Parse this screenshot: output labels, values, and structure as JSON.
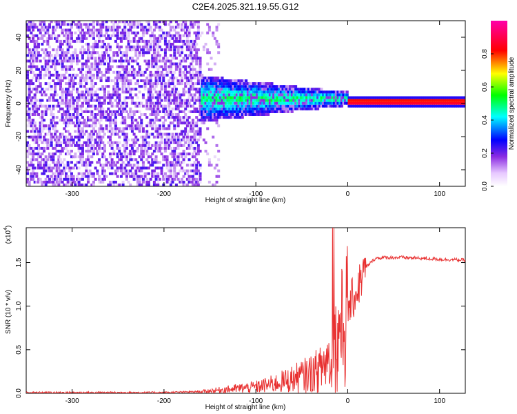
{
  "title": "C2E4.2025.321.19.55.G12",
  "chart_data": [
    {
      "type": "heatmap",
      "name": "spectrogram",
      "xlabel": "Height of straight line (km)",
      "ylabel": "Frequency (Hz)",
      "xlim": [
        -350,
        128
      ],
      "ylim": [
        -50,
        50
      ],
      "x_ticks": [
        -300,
        -200,
        -100,
        0,
        100
      ],
      "y_ticks": [
        -40,
        -20,
        0,
        20,
        40
      ],
      "x_tick_labels": [
        "-300",
        "-200",
        "-100",
        "0",
        "100"
      ],
      "y_tick_labels": [
        "-40",
        "-20",
        "0",
        "20",
        "40"
      ],
      "colorbar": {
        "label": "Normalized spectral amplitude",
        "range": [
          0,
          1
        ],
        "ticks": [
          0.0,
          0.2,
          0.4,
          0.6,
          0.8
        ],
        "tick_labels": [
          "0.0",
          "0.2",
          "0.4",
          "0.6",
          "0.8"
        ],
        "colormap": [
          "#ffffff",
          "#8a2be2",
          "#0000ff",
          "#00ffff",
          "#00ff00",
          "#ffff00",
          "#ff0000",
          "#ff00aa"
        ]
      },
      "regions": [
        {
          "x": [
            -350,
            -160
          ],
          "freq": [
            -50,
            50
          ],
          "amplitude": "low-noise"
        },
        {
          "x": [
            -175,
            0
          ],
          "freq": [
            -12,
            14
          ],
          "amplitude": "medium"
        },
        {
          "x": [
            0,
            128
          ],
          "freq": [
            -1,
            1
          ],
          "amplitude": "peak"
        }
      ]
    },
    {
      "type": "line",
      "name": "snr",
      "xlabel": "Height of straight line (km)",
      "ylabel": "SNR (10 * v/v)",
      "y_scale_label": "(x10",
      "y_scale_exp": "4",
      "xlim": [
        -350,
        128
      ],
      "ylim": [
        0,
        1.9
      ],
      "x_ticks": [
        -300,
        -200,
        -100,
        0,
        100
      ],
      "y_ticks": [
        0.0,
        0.5,
        1.0,
        1.5
      ],
      "x_tick_labels": [
        "-300",
        "-200",
        "-100",
        "0",
        "100"
      ],
      "y_tick_labels": [
        "0.0",
        "0.5",
        "1.0",
        "1.5"
      ],
      "line_color": "#e83030",
      "series": [
        {
          "name": "SNR",
          "x": [
            -350,
            -300,
            -250,
            -200,
            -160,
            -140,
            -120,
            -100,
            -80,
            -60,
            -40,
            -30,
            -20,
            -15,
            -10,
            -5,
            0,
            5,
            10,
            15,
            20,
            25,
            30,
            40,
            60,
            80,
            100,
            128
          ],
          "values": [
            0.01,
            0.01,
            0.01,
            0.01,
            0.02,
            0.04,
            0.06,
            0.08,
            0.12,
            0.18,
            0.25,
            0.3,
            0.45,
            0.55,
            0.7,
            0.85,
            1.0,
            1.1,
            1.2,
            1.35,
            1.45,
            1.5,
            1.55,
            1.56,
            1.56,
            1.55,
            1.54,
            1.53
          ]
        }
      ]
    }
  ]
}
